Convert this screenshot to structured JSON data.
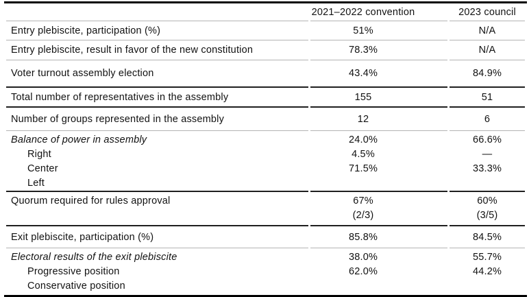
{
  "table": {
    "header": {
      "col1": "",
      "col2": "2021–2022 convention",
      "col3": "2023 council"
    },
    "rows": [
      {
        "label": "Entry plebiscite, participation (%)",
        "convention": "51%",
        "council": "N/A"
      },
      {
        "label": "Entry plebiscite, result in favor of the new constitution",
        "convention": "78.3%",
        "council": "N/A"
      },
      {
        "label": "Voter turnout assembly election",
        "convention": "43.4%",
        "council": "84.9%"
      },
      {
        "label": "Total number of representatives in the assembly",
        "convention": "155",
        "council": "51"
      },
      {
        "label": "Number of groups represented in the assembly",
        "convention": "12",
        "council": "6"
      },
      {
        "label": "Balance of power in assembly",
        "sublabels": [
          "Right",
          "Center",
          "Left"
        ],
        "convention_lines": [
          "24.0%",
          "4.5%",
          "71.5%"
        ],
        "council_lines": [
          "66.6%",
          "—",
          "33.3%"
        ]
      },
      {
        "label": "Quorum required for rules approval",
        "convention_lines": [
          "67%",
          "(2/3)"
        ],
        "council_lines": [
          "60%",
          "(3/5)"
        ]
      },
      {
        "label": "Exit plebiscite, participation (%)",
        "convention": "85.8%",
        "council": "84.5%"
      },
      {
        "label": "Electoral results of the exit plebiscite",
        "sublabels": [
          "Progressive position",
          "Conservative position"
        ],
        "convention_lines": [
          "38.0%",
          "62.0%"
        ],
        "council_lines": [
          "55.7%",
          "44.2%"
        ]
      }
    ]
  },
  "colors": {
    "text": "#111111",
    "rule_thin": "#b3b3b3",
    "rule_dark": "#1f1f1f",
    "rule_heavy": "#000000"
  }
}
